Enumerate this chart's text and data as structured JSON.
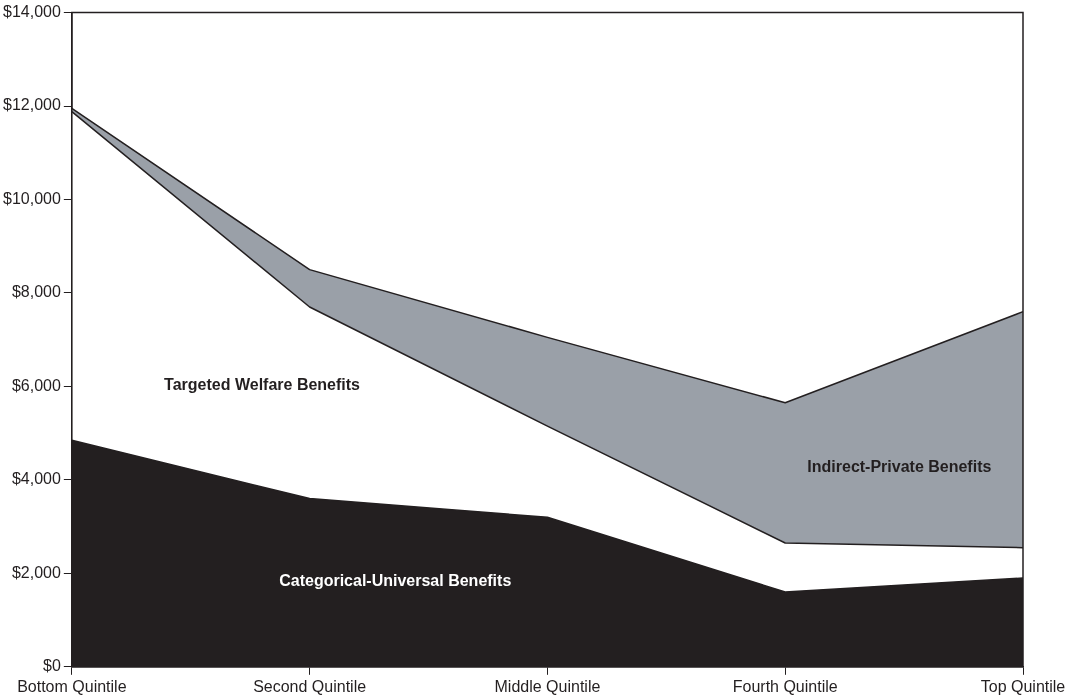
{
  "chart_data": {
    "type": "area",
    "stacked": true,
    "legend": false,
    "grid": false,
    "categories": [
      "Bottom Quintile",
      "Second Quintile",
      "Middle Quintile",
      "Fourth Quintile",
      "Top Quintile"
    ],
    "ylim": [
      0,
      14000
    ],
    "yticks": [
      {
        "value": 0,
        "label": "$0"
      },
      {
        "value": 2000,
        "label": "$2,000"
      },
      {
        "value": 4000,
        "label": "$4,000"
      },
      {
        "value": 6000,
        "label": "$6,000"
      },
      {
        "value": 8000,
        "label": "$8,000"
      },
      {
        "value": 10000,
        "label": "$10,000"
      },
      {
        "value": 12000,
        "label": "$12,000"
      },
      {
        "value": 14000,
        "label": "$14,000"
      }
    ],
    "series": [
      {
        "name": "Categorical-Universal Benefits",
        "color": "#231f20",
        "values": [
          4850,
          3600,
          3200,
          1600,
          1900
        ]
      },
      {
        "name": "Targeted Welfare Benefits",
        "color": "#ffffff",
        "values": [
          7030,
          4100,
          1950,
          1050,
          650
        ]
      },
      {
        "name": "Indirect-Private Benefits",
        "color": "#9aa0a8",
        "values": [
          70,
          800,
          1900,
          3000,
          5050
        ]
      }
    ]
  }
}
